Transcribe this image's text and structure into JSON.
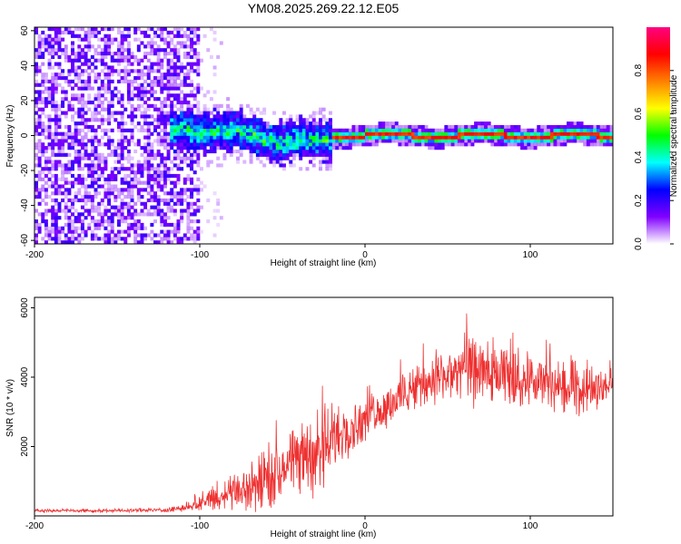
{
  "figure_title": "YM08.2025.269.22.12.E05",
  "chart_data": [
    {
      "type": "heatmap",
      "title": "YM08.2025.269.22.12.E05",
      "xlabel": "Height of straight line (km)",
      "ylabel": "Frequency (Hz)",
      "xlim": [
        -200,
        150
      ],
      "ylim": [
        -62,
        62
      ],
      "xticks": [
        -200,
        -100,
        0,
        100
      ],
      "xtick_labels": [
        "-200",
        "-100",
        "0",
        "100"
      ],
      "yticks": [
        -60,
        -40,
        -20,
        0,
        20,
        40,
        60
      ],
      "ytick_labels": [
        "-60",
        "-40",
        "-20",
        "0",
        "20",
        "40",
        "60"
      ],
      "colorbar": {
        "label": "Normalized spectral amplitude",
        "range": [
          0,
          1
        ],
        "ticks": [
          0.0,
          0.2,
          0.4,
          0.6,
          0.8
        ],
        "tick_labels": [
          "0.0",
          "0.2",
          "0.4",
          "0.6",
          "0.8"
        ],
        "colors": [
          "#ffffff",
          "#8000ff",
          "#0000ff",
          "#00ffff",
          "#00ff00",
          "#ffff00",
          "#ff8000",
          "#ff0000",
          "#ff0080"
        ]
      },
      "regions": [
        {
          "x_range": [
            -200,
            -100
          ],
          "freq_range": [
            -62,
            62
          ],
          "amplitude": "0.05-0.2",
          "description": "broadband noise"
        },
        {
          "x_range": [
            -115,
            -20
          ],
          "freq_range": [
            -12,
            12
          ],
          "amplitude": "0.2-0.5",
          "description": "emerging signal near 0 Hz"
        },
        {
          "x_range": [
            -20,
            150
          ],
          "freq_range": [
            -2,
            2
          ],
          "amplitude": "0.8-0.9",
          "description": "narrow line near 0 Hz"
        }
      ]
    },
    {
      "type": "line",
      "xlabel": "Height of straight line (km)",
      "ylabel": "SNR (10 * v/v)",
      "xlim": [
        -200,
        150
      ],
      "ylim": [
        0,
        6300
      ],
      "xticks": [
        -200,
        -100,
        0,
        100
      ],
      "xtick_labels": [
        "-200",
        "-100",
        "0",
        "100"
      ],
      "yticks": [
        2000,
        4000,
        6000
      ],
      "ytick_labels": [
        "2000",
        "4000",
        "6000"
      ],
      "color": "#ee3030",
      "series": [
        {
          "name": "SNR",
          "x": [
            -200,
            -180,
            -160,
            -140,
            -120,
            -110,
            -100,
            -90,
            -80,
            -70,
            -60,
            -50,
            -40,
            -30,
            -20,
            -10,
            0,
            10,
            20,
            30,
            40,
            50,
            60,
            70,
            80,
            90,
            100,
            110,
            120,
            130,
            140,
            150
          ],
          "y": [
            150,
            150,
            150,
            160,
            170,
            230,
            350,
            550,
            700,
            800,
            1000,
            1300,
            1600,
            1900,
            2100,
            2500,
            2800,
            3100,
            3400,
            3700,
            3900,
            4100,
            4200,
            4100,
            4000,
            3950,
            3900,
            3800,
            3700,
            3600,
            3700,
            3900
          ],
          "spread": [
            60,
            60,
            60,
            60,
            80,
            120,
            250,
            450,
            700,
            800,
            1000,
            1150,
            1300,
            1400,
            1400,
            1000,
            750,
            700,
            700,
            750,
            900,
            1100,
            1200,
            1100,
            1050,
            1000,
            1000,
            950,
            900,
            850,
            750,
            650
          ]
        }
      ]
    }
  ]
}
